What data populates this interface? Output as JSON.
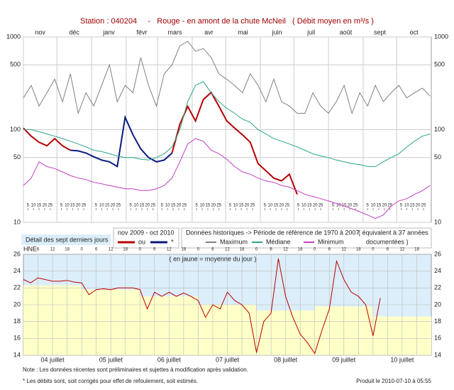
{
  "chart_data": [
    {
      "type": "line",
      "title": "Station : 040204     -   Rouge - en amont de la chute McNeil   ( Débit moyen en m³/s )",
      "log_scale": true,
      "grid": true,
      "xlim": [
        0,
        365
      ],
      "xticks": [
        {
          "value": 0,
          "label": "nov"
        },
        {
          "value": 30,
          "label": "déc"
        },
        {
          "value": 61,
          "label": "janv"
        },
        {
          "value": 92,
          "label": "févr"
        },
        {
          "value": 120,
          "label": "mars"
        },
        {
          "value": 151,
          "label": "avr"
        },
        {
          "value": 181,
          "label": "mai"
        },
        {
          "value": 212,
          "label": "juin"
        },
        {
          "value": 242,
          "label": "juil"
        },
        {
          "value": 273,
          "label": "août"
        },
        {
          "value": 304,
          "label": "sept"
        },
        {
          "value": 334,
          "label": "oct"
        }
      ],
      "minor_xticks": [
        {
          "value": 4,
          "label": "5"
        },
        {
          "value": 9,
          "label": "10"
        },
        {
          "value": 14,
          "label": "15"
        },
        {
          "value": 19,
          "label": "20"
        },
        {
          "value": 24,
          "label": "25"
        },
        {
          "value": 34,
          "label": "5"
        },
        {
          "value": 39,
          "label": "10"
        },
        {
          "value": 44,
          "label": "15"
        },
        {
          "value": 49,
          "label": "20"
        },
        {
          "value": 54,
          "label": "25"
        },
        {
          "value": 65,
          "label": "5"
        },
        {
          "value": 70,
          "label": "10"
        },
        {
          "value": 75,
          "label": "15"
        },
        {
          "value": 80,
          "label": "20"
        },
        {
          "value": 85,
          "label": "25"
        },
        {
          "value": 96,
          "label": "5"
        },
        {
          "value": 101,
          "label": "10"
        },
        {
          "value": 106,
          "label": "15"
        },
        {
          "value": 111,
          "label": "20"
        },
        {
          "value": 116,
          "label": "25"
        },
        {
          "value": 124,
          "label": "5"
        },
        {
          "value": 129,
          "label": "10"
        },
        {
          "value": 134,
          "label": "15"
        },
        {
          "value": 139,
          "label": "20"
        },
        {
          "value": 144,
          "label": "25"
        },
        {
          "value": 155,
          "label": "5"
        },
        {
          "value": 160,
          "label": "10"
        },
        {
          "value": 165,
          "label": "15"
        },
        {
          "value": 170,
          "label": "20"
        },
        {
          "value": 175,
          "label": "25"
        },
        {
          "value": 185,
          "label": "5"
        },
        {
          "value": 190,
          "label": "10"
        },
        {
          "value": 195,
          "label": "15"
        },
        {
          "value": 200,
          "label": "20"
        },
        {
          "value": 205,
          "label": "25"
        },
        {
          "value": 216,
          "label": "5"
        },
        {
          "value": 221,
          "label": "10"
        },
        {
          "value": 226,
          "label": "15"
        },
        {
          "value": 231,
          "label": "20"
        },
        {
          "value": 236,
          "label": "25"
        },
        {
          "value": 246,
          "label": "5"
        },
        {
          "value": 251,
          "label": "10"
        },
        {
          "value": 256,
          "label": "15"
        },
        {
          "value": 261,
          "label": "20"
        },
        {
          "value": 266,
          "label": "25"
        },
        {
          "value": 277,
          "label": "5"
        },
        {
          "value": 282,
          "label": "10"
        },
        {
          "value": 287,
          "label": "15"
        },
        {
          "value": 292,
          "label": "20"
        },
        {
          "value": 297,
          "label": "25"
        },
        {
          "value": 308,
          "label": "5"
        },
        {
          "value": 313,
          "label": "10"
        },
        {
          "value": 318,
          "label": "15"
        },
        {
          "value": 323,
          "label": "20"
        },
        {
          "value": 328,
          "label": "25"
        },
        {
          "value": 338,
          "label": "5"
        },
        {
          "value": 343,
          "label": "10"
        },
        {
          "value": 348,
          "label": "15"
        },
        {
          "value": 353,
          "label": "20"
        },
        {
          "value": 358,
          "label": "25"
        }
      ],
      "ylim": [
        10,
        1000
      ],
      "yticks": [
        10,
        50,
        100,
        500,
        1000
      ],
      "x": [
        0,
        7,
        14,
        21,
        28,
        35,
        42,
        49,
        56,
        63,
        70,
        77,
        84,
        91,
        98,
        105,
        112,
        119,
        126,
        133,
        140,
        147,
        154,
        161,
        168,
        175,
        182,
        189,
        196,
        203,
        210,
        217,
        224,
        231,
        238,
        245,
        252,
        259,
        266,
        273,
        280,
        287,
        294,
        301,
        308,
        315,
        322,
        329,
        336,
        343,
        350,
        357,
        364
      ],
      "series": [
        {
          "name": "ou",
          "color": "#b80000",
          "width": 2,
          "values": [
            104,
            85,
            73,
            67,
            80,
            67,
            60,
            null,
            null,
            null,
            null,
            null,
            null,
            null,
            null,
            null,
            null,
            null,
            null,
            56,
            114,
            178,
            124,
            211,
            252,
            178,
            124,
            104,
            88,
            73,
            43,
            36,
            30,
            28,
            33,
            20,
            null,
            null,
            null,
            null,
            null,
            null,
            null,
            null,
            null,
            null,
            null,
            null,
            null,
            null,
            null,
            null,
            null
          ]
        },
        {
          "name": "*",
          "color": "#0a1a80",
          "width": 2,
          "values": [
            null,
            null,
            null,
            null,
            null,
            null,
            60,
            59,
            56,
            51,
            47,
            45,
            40,
            136,
            88,
            62,
            50,
            45,
            47,
            56,
            null,
            null,
            null,
            null,
            null,
            null,
            null,
            null,
            null,
            null,
            null,
            null,
            null,
            null,
            null,
            null,
            null,
            null,
            null,
            null,
            null,
            null,
            null,
            null,
            null,
            null,
            null,
            null,
            null,
            null,
            null,
            null,
            null
          ]
        },
        {
          "name": "Maximum",
          "color": "#808080",
          "width": 1,
          "values": [
            220,
            300,
            180,
            250,
            350,
            200,
            400,
            150,
            250,
            180,
            300,
            500,
            200,
            300,
            250,
            600,
            300,
            180,
            400,
            500,
            800,
            900,
            700,
            750,
            600,
            400,
            350,
            300,
            250,
            400,
            300,
            200,
            350,
            200,
            180,
            150,
            150,
            250,
            180,
            150,
            200,
            300,
            150,
            250,
            180,
            300,
            200,
            250,
            300,
            220,
            250,
            280,
            230
          ]
        },
        {
          "name": "Médiane",
          "color": "#2aa58a",
          "width": 1,
          "values": [
            100,
            100,
            95,
            90,
            85,
            80,
            75,
            70,
            65,
            60,
            58,
            55,
            52,
            50,
            50,
            48,
            47,
            50,
            55,
            65,
            100,
            200,
            300,
            330,
            250,
            200,
            170,
            150,
            130,
            120,
            100,
            90,
            80,
            75,
            70,
            65,
            60,
            55,
            52,
            50,
            47,
            45,
            43,
            42,
            40,
            40,
            45,
            50,
            55,
            65,
            75,
            85,
            90
          ]
        },
        {
          "name": "Minimum",
          "color": "#c040c0",
          "width": 1,
          "values": [
            25,
            30,
            45,
            40,
            38,
            35,
            32,
            30,
            29,
            27,
            26,
            25,
            24,
            23,
            23,
            22,
            22,
            23,
            25,
            30,
            45,
            70,
            80,
            75,
            60,
            55,
            48,
            40,
            35,
            33,
            30,
            28,
            27,
            25,
            24,
            22,
            20,
            19,
            18,
            17,
            16,
            15,
            14,
            13,
            12,
            11,
            12,
            15,
            17,
            18,
            20,
            22,
            25
          ]
        }
      ],
      "legend": {
        "period": "nov 2009 - oct 2010",
        "historical": "Données historiques -> Période de référence de 1970 à 2007",
        "equivalent": "( équivalent à 37 années",
        "documented": "documentées )"
      },
      "annotation": "Détail des sept derniers jours"
    },
    {
      "type": "line",
      "grid": true,
      "annotation": "( en jaune = moyenne du jour )",
      "time_zone": "HNE",
      "xlim": [
        0,
        168
      ],
      "xticks": [
        6,
        12,
        18,
        {
          "value": 24,
          "label": "0"
        },
        {
          "value": 30,
          "label": "6"
        },
        {
          "value": 36,
          "label": "12"
        },
        {
          "value": 42,
          "label": "18"
        },
        {
          "value": 48,
          "label": "0"
        },
        {
          "value": 54,
          "label": "6"
        },
        {
          "value": 60,
          "label": "12"
        },
        {
          "value": 66,
          "label": "18"
        },
        {
          "value": 72,
          "label": "0"
        },
        {
          "value": 78,
          "label": "6"
        },
        {
          "value": 84,
          "label": "12"
        },
        {
          "value": 90,
          "label": "18"
        },
        {
          "value": 96,
          "label": "0"
        },
        {
          "value": 102,
          "label": "6"
        },
        {
          "value": 108,
          "label": "12"
        },
        {
          "value": 114,
          "label": "18"
        },
        {
          "value": 120,
          "label": "0"
        },
        {
          "value": 126,
          "label": "6"
        },
        {
          "value": 132,
          "label": "12"
        },
        {
          "value": 138,
          "label": "18"
        },
        {
          "value": 144,
          "label": "0"
        },
        {
          "value": 150,
          "label": "6"
        },
        {
          "value": 156,
          "label": "12"
        },
        {
          "value": 162,
          "label": "18"
        }
      ],
      "ylim": [
        14,
        26
      ],
      "yticks": [
        14,
        16,
        18,
        20,
        22,
        24,
        26
      ],
      "x": [
        0,
        3,
        6,
        9,
        12,
        15,
        18,
        21,
        24,
        27,
        30,
        33,
        36,
        39,
        42,
        45,
        48,
        51,
        54,
        57,
        60,
        63,
        66,
        69,
        72,
        75,
        78,
        81,
        84,
        87,
        90,
        93,
        96,
        99,
        102,
        105,
        108,
        111,
        114,
        117,
        120,
        123,
        126,
        129,
        132,
        135,
        138,
        141,
        144,
        147
      ],
      "series": [
        {
          "color": "#b80000",
          "width": 1,
          "values": [
            23,
            22.6,
            23.2,
            23,
            22.8,
            22.8,
            22.9,
            22.7,
            22.6,
            21.2,
            21.8,
            21.9,
            21.8,
            22,
            22,
            22,
            21.8,
            19.5,
            21.5,
            21,
            21.5,
            21,
            21.4,
            21,
            20.5,
            18.5,
            20,
            19.5,
            21.5,
            20.5,
            20,
            19,
            14.3,
            18,
            19,
            25.5,
            21,
            18.5,
            16.5,
            15.5,
            14.2,
            17,
            19.5,
            25.2,
            23,
            21.5,
            21,
            20,
            16.3,
            20.8
          ]
        }
      ],
      "daily_mean": {
        "color": "#ffffc8",
        "categories": [
          "04 juillet",
          "05 juillet",
          "06 juillet",
          "07 juillet",
          "08 juillet",
          "09 juillet",
          "10 juillet"
        ],
        "values": [
          22.3,
          21.8,
          21.0,
          20.0,
          19.3,
          19.8,
          18.6
        ]
      },
      "notes": [
        "Note : Les données récentes sont préliminaires et sujettes à modification après validation.",
        "* Les débits sont, soit corrigés pour effet de refoulement, soit estimés."
      ],
      "produced": "Produit le 2010-07-10 à 05:55"
    }
  ]
}
